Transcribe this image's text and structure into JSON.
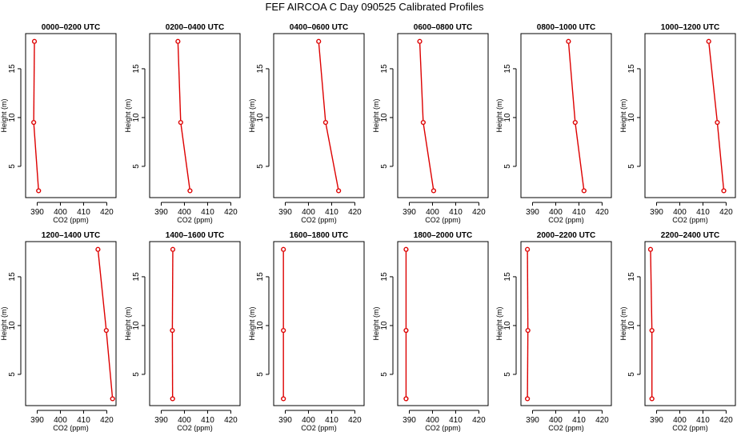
{
  "chart_data": {
    "type": "line",
    "title": "FEF AIRCOA C  Day 090525  Calibrated Profiles",
    "xlabel": "CO2 (ppm)",
    "ylabel": "Height (m)",
    "xlim": [
      385,
      424
    ],
    "ylim": [
      1.8,
      18.6
    ],
    "xticks": [
      390,
      400,
      410,
      420
    ],
    "yticks": [
      5,
      10,
      15
    ],
    "panels": [
      {
        "title": "0000–0200 UTC",
        "points": [
          {
            "x": 388.8,
            "y": 17.8
          },
          {
            "x": 388.5,
            "y": 9.5
          },
          {
            "x": 390.6,
            "y": 2.5
          }
        ]
      },
      {
        "title": "0200–0400 UTC",
        "points": [
          {
            "x": 397.2,
            "y": 17.8
          },
          {
            "x": 398.4,
            "y": 9.5
          },
          {
            "x": 402.4,
            "y": 2.5
          }
        ]
      },
      {
        "title": "0400–0600 UTC",
        "points": [
          {
            "x": 404.4,
            "y": 17.8
          },
          {
            "x": 407.4,
            "y": 9.5
          },
          {
            "x": 413.0,
            "y": 2.5
          }
        ]
      },
      {
        "title": "0600–0800 UTC",
        "points": [
          {
            "x": 394.5,
            "y": 17.8
          },
          {
            "x": 396.0,
            "y": 9.5
          },
          {
            "x": 400.5,
            "y": 2.5
          }
        ]
      },
      {
        "title": "0800–1000 UTC",
        "points": [
          {
            "x": 405.5,
            "y": 17.8
          },
          {
            "x": 408.4,
            "y": 9.5
          },
          {
            "x": 412.2,
            "y": 2.5
          }
        ]
      },
      {
        "title": "1000–1200 UTC",
        "points": [
          {
            "x": 412.5,
            "y": 17.8
          },
          {
            "x": 416.2,
            "y": 9.5
          },
          {
            "x": 419.0,
            "y": 2.5
          }
        ]
      },
      {
        "title": "1200–1400 UTC",
        "points": [
          {
            "x": 416.2,
            "y": 17.8
          },
          {
            "x": 419.8,
            "y": 9.5
          },
          {
            "x": 422.5,
            "y": 2.5
          }
        ]
      },
      {
        "title": "1400–1600 UTC",
        "points": [
          {
            "x": 395.0,
            "y": 17.8
          },
          {
            "x": 394.8,
            "y": 9.5
          },
          {
            "x": 394.9,
            "y": 2.5
          }
        ]
      },
      {
        "title": "1600–1800 UTC",
        "points": [
          {
            "x": 389.2,
            "y": 17.8
          },
          {
            "x": 389.2,
            "y": 9.5
          },
          {
            "x": 389.2,
            "y": 2.5
          }
        ]
      },
      {
        "title": "1800–2000 UTC",
        "points": [
          {
            "x": 388.6,
            "y": 17.8
          },
          {
            "x": 388.6,
            "y": 9.5
          },
          {
            "x": 388.6,
            "y": 2.5
          }
        ]
      },
      {
        "title": "2000–2200 UTC",
        "points": [
          {
            "x": 387.8,
            "y": 17.8
          },
          {
            "x": 388.0,
            "y": 9.5
          },
          {
            "x": 387.8,
            "y": 2.5
          }
        ]
      },
      {
        "title": "2200–2400 UTC",
        "points": [
          {
            "x": 387.4,
            "y": 17.8
          },
          {
            "x": 388.0,
            "y": 9.5
          },
          {
            "x": 388.0,
            "y": 2.5
          }
        ]
      }
    ]
  }
}
